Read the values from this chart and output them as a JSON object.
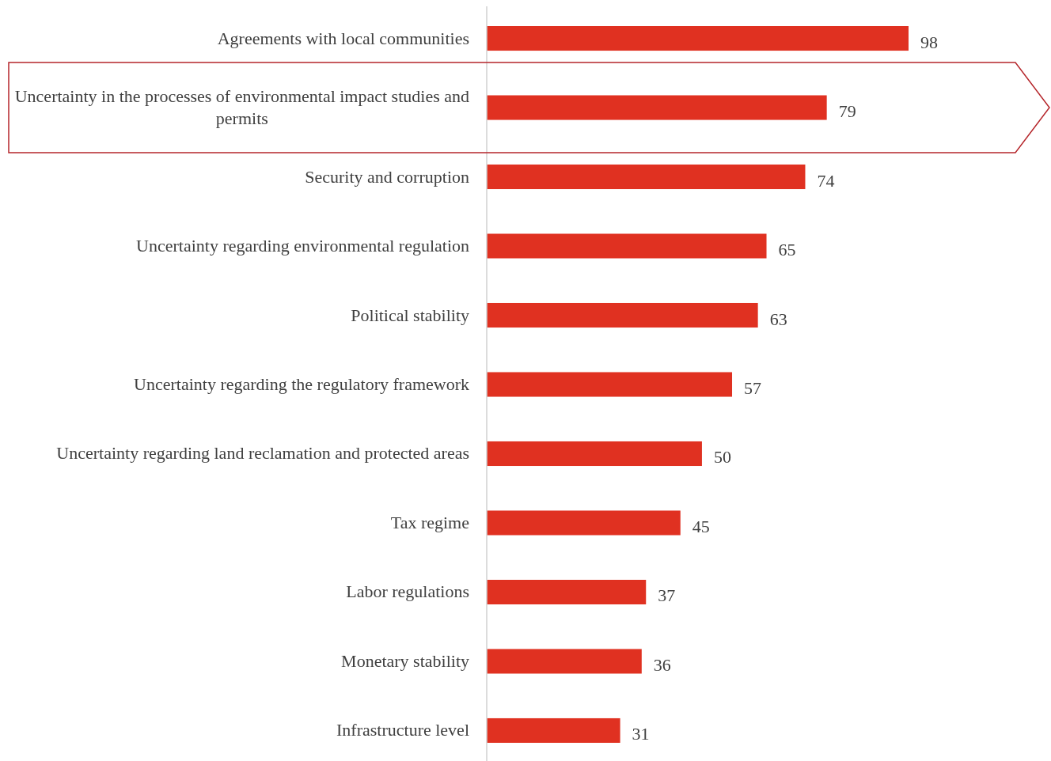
{
  "chart_data": {
    "type": "bar",
    "orientation": "horizontal",
    "data_labels": true,
    "color": "#e03121",
    "categories": [
      "Agreements with local communities",
      "Uncertainty in the processes of environmental impact studies and permits",
      "Security and corruption",
      "Uncertainty regarding environmental regulation",
      "Political stability",
      "Uncertainty regarding the regulatory framework",
      "Uncertainty regarding land reclamation and protected areas",
      "Tax regime",
      "Labor regulations",
      "Monetary stability",
      "Infrastructure level"
    ],
    "values": [
      98,
      79,
      74,
      65,
      63,
      57,
      50,
      45,
      37,
      36,
      31
    ]
  }
}
